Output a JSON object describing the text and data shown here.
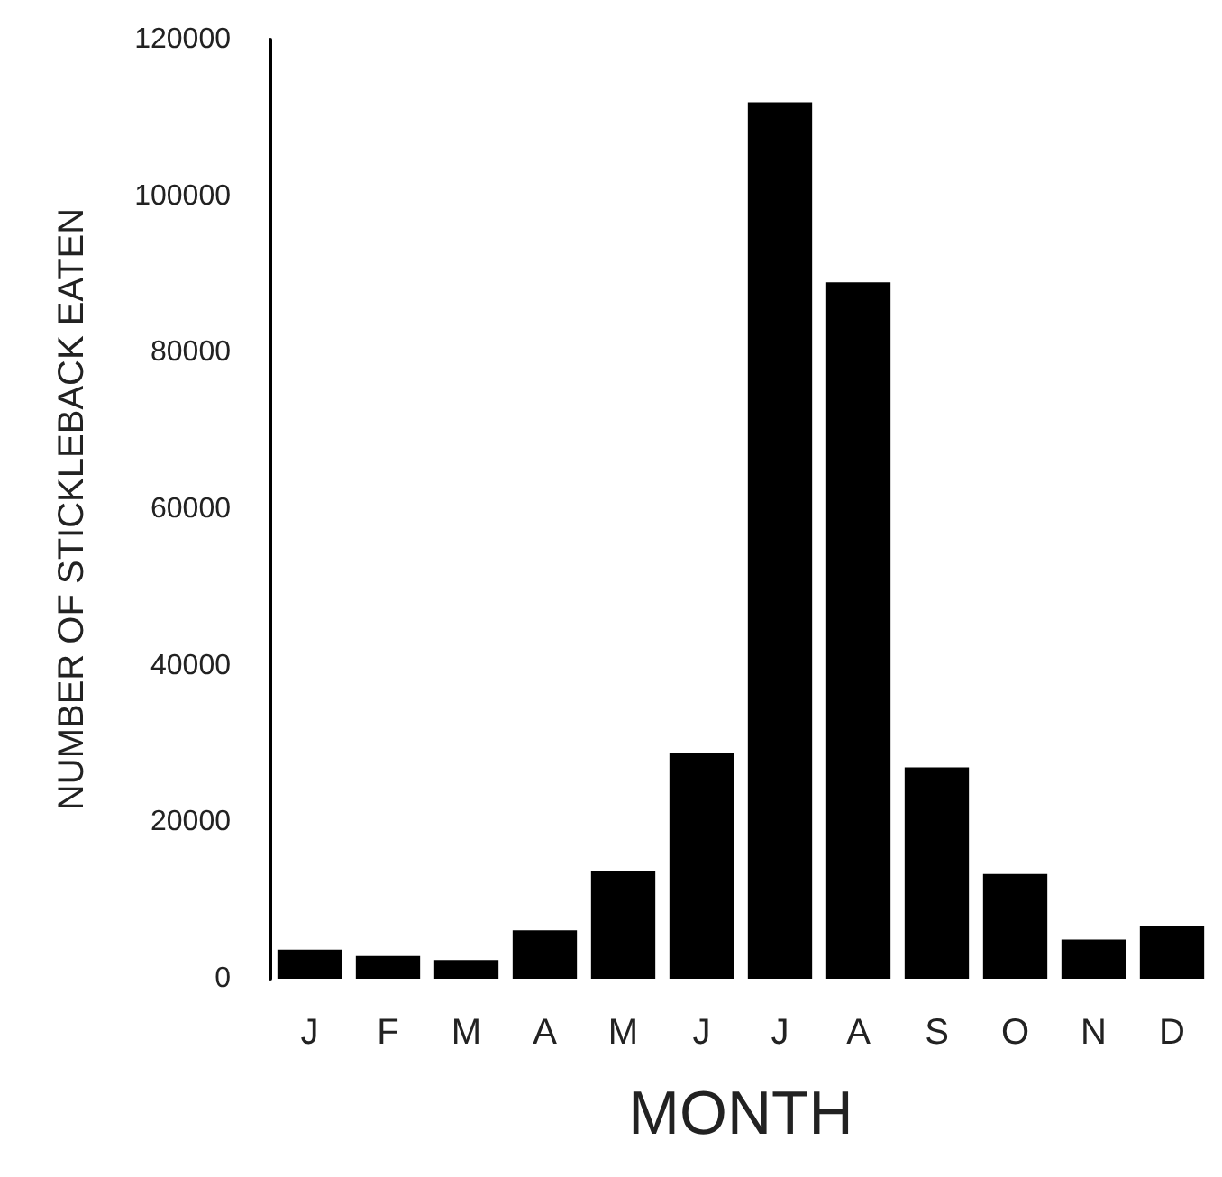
{
  "chart_data": {
    "type": "bar",
    "xlabel": "MONTH",
    "ylabel": "NUMBER OF STICKLEBACK EATEN",
    "categories": [
      "J",
      "F",
      "M",
      "A",
      "M",
      "J",
      "J",
      "A",
      "S",
      "O",
      "N",
      "D"
    ],
    "values": [
      3700,
      2900,
      2400,
      6200,
      13700,
      28900,
      112000,
      89000,
      27000,
      13400,
      5000,
      6700
    ],
    "color": "#000000",
    "ylim": [
      0,
      120000
    ],
    "yticks": [
      0,
      20000,
      40000,
      60000,
      80000,
      100000,
      120000
    ],
    "grid": false
  }
}
